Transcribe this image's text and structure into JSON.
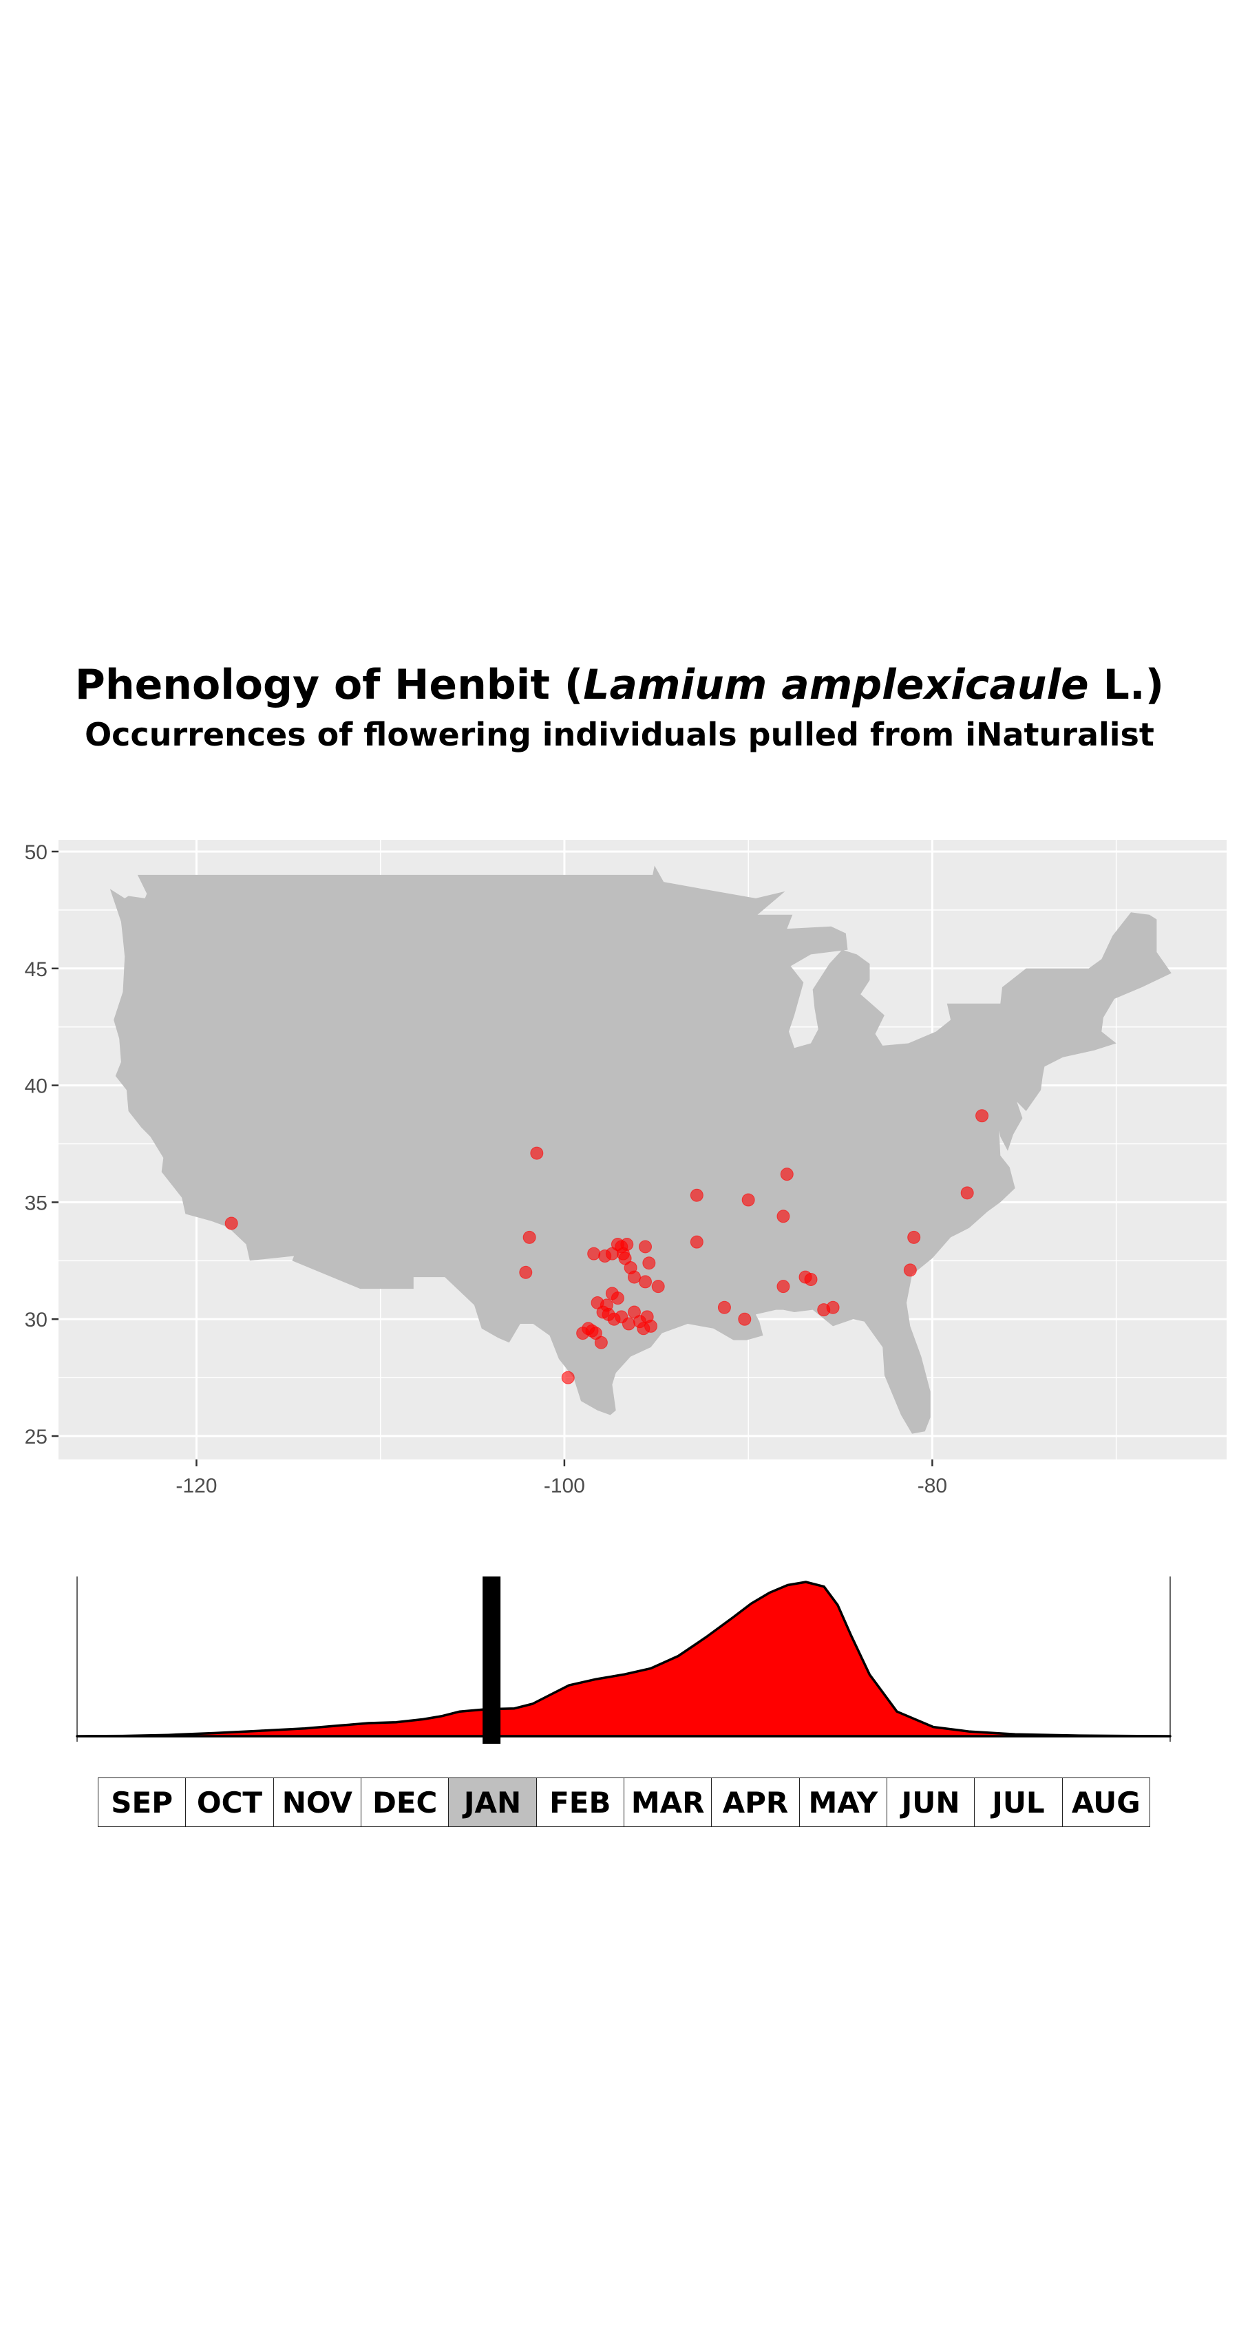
{
  "title": {
    "prefix": "Phenology of Henbit (",
    "scientific": "Lamium amplexicaule",
    "suffix": " L.)",
    "subtitle": "Occurrences of flowering individuals pulled from iNaturalist"
  },
  "colors": {
    "panel": "#ebebeb",
    "land": "#bebebe",
    "grid": "#ffffff",
    "point": "#ff0000",
    "density_fill": "#ff0000",
    "density_line": "#000000",
    "month_active": "#bfbfbf"
  },
  "chart_data": [
    {
      "type": "scatter",
      "title": "",
      "xlabel": "",
      "ylabel": "",
      "xlim": [
        -127.5,
        -64
      ],
      "ylim": [
        24,
        50.5
      ],
      "x_ticks": [
        -120,
        -100,
        -80
      ],
      "y_ticks": [
        25,
        30,
        35,
        40,
        45,
        50
      ],
      "x_tick_labels": [
        "-120",
        "-100",
        "-80"
      ],
      "y_tick_labels": [
        "25",
        "30",
        "35",
        "40",
        "45",
        "50"
      ],
      "grid": true,
      "basemap": "contiguous United States",
      "points": [
        {
          "x": -118.1,
          "y": 34.1
        },
        {
          "x": -101.5,
          "y": 37.1
        },
        {
          "x": -101.9,
          "y": 33.5
        },
        {
          "x": -102.1,
          "y": 32.0
        },
        {
          "x": -99.8,
          "y": 27.5
        },
        {
          "x": -98.4,
          "y": 32.8
        },
        {
          "x": -97.8,
          "y": 32.7
        },
        {
          "x": -97.4,
          "y": 32.8
        },
        {
          "x": -97.1,
          "y": 33.2
        },
        {
          "x": -96.8,
          "y": 32.8
        },
        {
          "x": -96.9,
          "y": 33.1
        },
        {
          "x": -96.6,
          "y": 33.2
        },
        {
          "x": -96.7,
          "y": 32.6
        },
        {
          "x": -96.4,
          "y": 32.2
        },
        {
          "x": -96.2,
          "y": 31.8
        },
        {
          "x": -95.6,
          "y": 33.1
        },
        {
          "x": -95.4,
          "y": 32.4
        },
        {
          "x": -95.6,
          "y": 31.6
        },
        {
          "x": -94.9,
          "y": 31.4
        },
        {
          "x": -97.4,
          "y": 31.1
        },
        {
          "x": -97.1,
          "y": 30.9
        },
        {
          "x": -97.7,
          "y": 30.6
        },
        {
          "x": -97.9,
          "y": 30.3
        },
        {
          "x": -97.6,
          "y": 30.2
        },
        {
          "x": -97.3,
          "y": 30.0
        },
        {
          "x": -96.9,
          "y": 30.1
        },
        {
          "x": -98.2,
          "y": 30.7
        },
        {
          "x": -98.5,
          "y": 29.5
        },
        {
          "x": -98.3,
          "y": 29.4
        },
        {
          "x": -98.7,
          "y": 29.6
        },
        {
          "x": -99.0,
          "y": 29.4
        },
        {
          "x": -98.0,
          "y": 29.0
        },
        {
          "x": -96.2,
          "y": 30.3
        },
        {
          "x": -95.9,
          "y": 29.9
        },
        {
          "x": -95.7,
          "y": 29.6
        },
        {
          "x": -95.3,
          "y": 29.7
        },
        {
          "x": -96.5,
          "y": 29.8
        },
        {
          "x": -95.5,
          "y": 30.1
        },
        {
          "x": -92.8,
          "y": 35.3
        },
        {
          "x": -92.8,
          "y": 33.3
        },
        {
          "x": -90.0,
          "y": 35.1
        },
        {
          "x": -91.3,
          "y": 30.5
        },
        {
          "x": -90.2,
          "y": 30.0
        },
        {
          "x": -87.9,
          "y": 36.2
        },
        {
          "x": -88.1,
          "y": 34.4
        },
        {
          "x": -88.1,
          "y": 31.4
        },
        {
          "x": -86.9,
          "y": 31.8
        },
        {
          "x": -86.6,
          "y": 31.7
        },
        {
          "x": -85.9,
          "y": 30.4
        },
        {
          "x": -85.4,
          "y": 30.5
        },
        {
          "x": -81.0,
          "y": 33.5
        },
        {
          "x": -81.2,
          "y": 32.1
        },
        {
          "x": -78.1,
          "y": 35.4
        },
        {
          "x": -77.3,
          "y": 38.7
        }
      ]
    },
    {
      "type": "area",
      "title": "",
      "xlabel": "",
      "ylabel": "",
      "x_unit": "month index (0 = start of SEP, 12 = end of AUG)",
      "xlim": [
        0,
        12
      ],
      "ylim": [
        0,
        1
      ],
      "current_marker": 4.55,
      "x": [
        0,
        0.5,
        1,
        1.5,
        2,
        2.5,
        2.9,
        3.2,
        3.5,
        3.8,
        4.0,
        4.2,
        4.5,
        4.8,
        5.0,
        5.2,
        5.4,
        5.7,
        6.0,
        6.3,
        6.6,
        6.9,
        7.2,
        7.4,
        7.6,
        7.8,
        8.0,
        8.2,
        8.35,
        8.5,
        8.7,
        9.0,
        9.4,
        9.8,
        10.3,
        11,
        11.5,
        12
      ],
      "y": [
        0,
        0.002,
        0.008,
        0.02,
        0.035,
        0.05,
        0.07,
        0.085,
        0.09,
        0.11,
        0.13,
        0.16,
        0.175,
        0.18,
        0.21,
        0.27,
        0.33,
        0.37,
        0.4,
        0.44,
        0.52,
        0.64,
        0.77,
        0.86,
        0.93,
        0.98,
        1.0,
        0.97,
        0.85,
        0.65,
        0.4,
        0.16,
        0.06,
        0.03,
        0.012,
        0.004,
        0.002,
        0
      ]
    }
  ],
  "months": {
    "labels": [
      "SEP",
      "OCT",
      "NOV",
      "DEC",
      "JAN",
      "FEB",
      "MAR",
      "APR",
      "MAY",
      "JUN",
      "JUL",
      "AUG"
    ],
    "selected": "JAN"
  }
}
